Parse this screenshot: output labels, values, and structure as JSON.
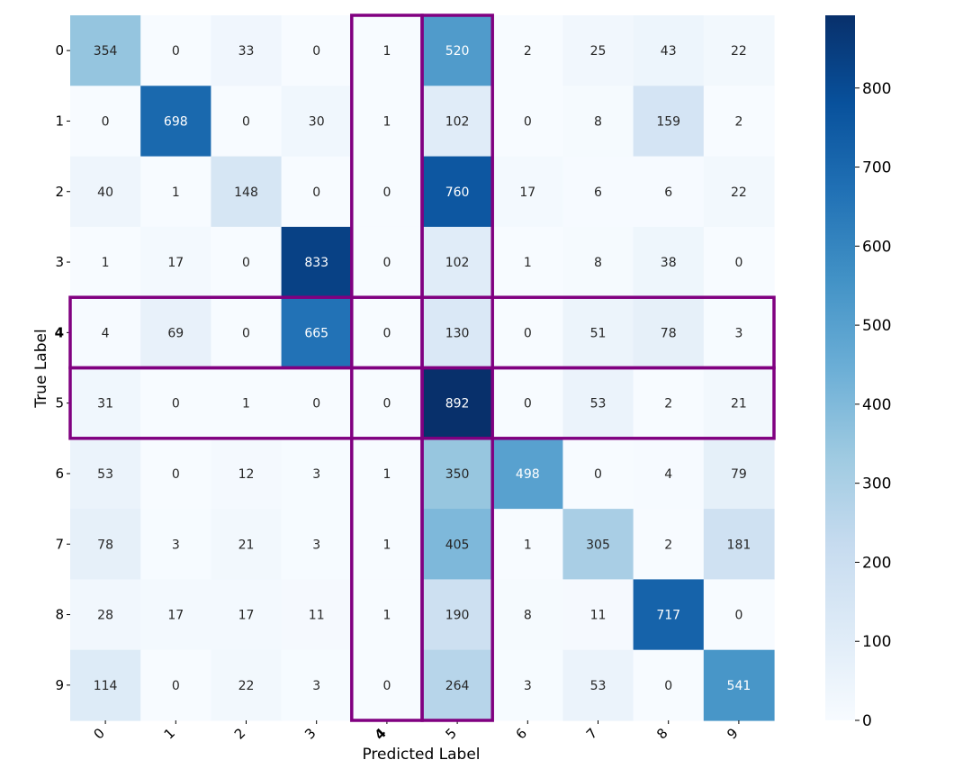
{
  "chart_data": {
    "type": "heatmap",
    "xlabel": "Predicted Label",
    "ylabel": "True Label",
    "x_categories": [
      "0",
      "1",
      "2",
      "3",
      "4",
      "5",
      "6",
      "7",
      "8",
      "9"
    ],
    "y_categories": [
      "0",
      "1",
      "2",
      "3",
      "4",
      "5",
      "6",
      "7",
      "8",
      "9"
    ],
    "values": [
      [
        354,
        0,
        33,
        0,
        1,
        520,
        2,
        25,
        43,
        22
      ],
      [
        0,
        698,
        0,
        30,
        1,
        102,
        0,
        8,
        159,
        2
      ],
      [
        40,
        1,
        148,
        0,
        0,
        760,
        17,
        6,
        6,
        22
      ],
      [
        1,
        17,
        0,
        833,
        0,
        102,
        1,
        8,
        38,
        0
      ],
      [
        4,
        69,
        0,
        665,
        0,
        130,
        0,
        51,
        78,
        3
      ],
      [
        31,
        0,
        1,
        0,
        0,
        892,
        0,
        53,
        2,
        21
      ],
      [
        53,
        0,
        12,
        3,
        1,
        350,
        498,
        0,
        4,
        79
      ],
      [
        78,
        3,
        21,
        3,
        1,
        405,
        1,
        305,
        2,
        181
      ],
      [
        28,
        17,
        17,
        11,
        1,
        190,
        8,
        11,
        717,
        0
      ],
      [
        114,
        0,
        22,
        3,
        0,
        264,
        3,
        53,
        0,
        541
      ]
    ],
    "colormap": "Blues",
    "vmin": 0,
    "vmax": 892,
    "colorbar_ticks": [
      0,
      100,
      200,
      300,
      400,
      500,
      600,
      700,
      800
    ],
    "highlight_color": "#800080",
    "highlight_label_color": "#e60000",
    "highlighted_rows": [
      "4",
      "5"
    ],
    "highlighted_columns": [
      "4",
      "5"
    ],
    "highlighted_tick_labels": {
      "x": [
        "4"
      ],
      "y": [
        "4"
      ]
    }
  }
}
